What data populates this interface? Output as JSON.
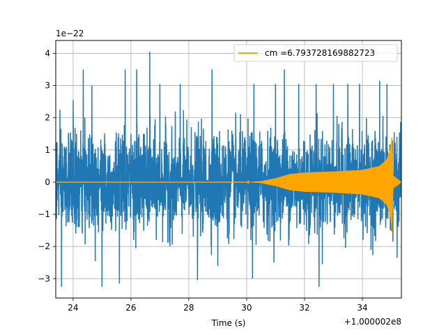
{
  "chart_data": {
    "type": "line",
    "title": "",
    "xlabel": "Time (s)",
    "ylabel": "",
    "x_offset_label": "+1.000002e8",
    "y_scale_label": "1e−22",
    "xlim": [
      23.4,
      35.35
    ],
    "ylim": [
      -3.6,
      4.4
    ],
    "x_ticks": [
      24,
      26,
      28,
      30,
      32,
      34
    ],
    "x_tick_labels": [
      "24",
      "26",
      "28",
      "30",
      "32",
      "34"
    ],
    "y_ticks": [
      -3,
      -2,
      -1,
      0,
      1,
      2,
      3,
      4
    ],
    "y_tick_labels": [
      "−3",
      "−2",
      "−1",
      "0",
      "1",
      "2",
      "3",
      "4"
    ],
    "grid": true,
    "legend_position": "upper-right",
    "series": [
      {
        "name": "",
        "color": "#1f77b4",
        "description_kind": "noisy strain data",
        "x_start": 23.4,
        "x_end": 35.35,
        "typical_amplitude": 1.45,
        "peaks": [
          {
            "x": 23.6,
            "y": -3.25
          },
          {
            "x": 24.0,
            "y": 2.55
          },
          {
            "x": 24.35,
            "y": 3.5
          },
          {
            "x": 24.65,
            "y": 3.0
          },
          {
            "x": 25.0,
            "y": -3.25
          },
          {
            "x": 25.6,
            "y": -3.15
          },
          {
            "x": 25.8,
            "y": 3.5
          },
          {
            "x": 26.2,
            "y": 3.5
          },
          {
            "x": 26.65,
            "y": 4.05
          },
          {
            "x": 27.0,
            "y": 3.05
          },
          {
            "x": 27.7,
            "y": 3.05
          },
          {
            "x": 28.3,
            "y": -3.05
          },
          {
            "x": 28.8,
            "y": 3.5
          },
          {
            "x": 29.0,
            "y": -2.6
          },
          {
            "x": 30.25,
            "y": 3.05
          },
          {
            "x": 30.2,
            "y": -3.0
          },
          {
            "x": 31.0,
            "y": 3.05
          },
          {
            "x": 31.3,
            "y": 3.5
          },
          {
            "x": 31.8,
            "y": 3.05
          },
          {
            "x": 32.4,
            "y": 3.05
          },
          {
            "x": 32.5,
            "y": -3.25
          },
          {
            "x": 33.0,
            "y": 3.05
          },
          {
            "x": 33.5,
            "y": 3.05
          },
          {
            "x": 33.9,
            "y": 3.05
          },
          {
            "x": 34.6,
            "y": 3.15
          },
          {
            "x": 34.85,
            "y": 3.05
          },
          {
            "x": 35.2,
            "y": -2.35
          }
        ]
      },
      {
        "name": "cm =6.793728169882723",
        "color": "#ffa500",
        "description_kind": "chirp waveform",
        "envelope": [
          {
            "x": 23.4,
            "amp": 0.0
          },
          {
            "x": 30.0,
            "amp": 0.0
          },
          {
            "x": 30.5,
            "amp": 0.03
          },
          {
            "x": 31.0,
            "amp": 0.12
          },
          {
            "x": 31.5,
            "amp": 0.25
          },
          {
            "x": 32.0,
            "amp": 0.3
          },
          {
            "x": 33.0,
            "amp": 0.33
          },
          {
            "x": 34.0,
            "amp": 0.38
          },
          {
            "x": 34.6,
            "amp": 0.5
          },
          {
            "x": 34.85,
            "amp": 0.7
          },
          {
            "x": 34.97,
            "amp": 1.0
          },
          {
            "x": 35.02,
            "amp": 1.38
          },
          {
            "x": 35.06,
            "amp": 0.2
          },
          {
            "x": 35.35,
            "amp": 0.0
          }
        ],
        "peak_high": 1.38,
        "peak_low": -1.55
      }
    ]
  }
}
